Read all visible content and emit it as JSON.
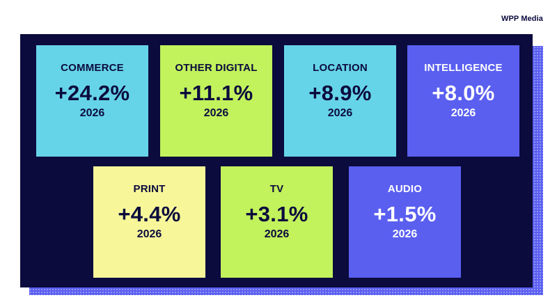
{
  "brand": "WPP Media",
  "colors": {
    "background": "#ffffff",
    "panel": "#0b0b3d",
    "cyan": "#66d4e8",
    "lime": "#c2f25c",
    "blue": "#5a5ff0",
    "yellow": "#f7f79a"
  },
  "tiles": [
    {
      "label": "COMMERCE",
      "value": "+24.2%",
      "year": "2026",
      "color": "#66d4e8"
    },
    {
      "label": "OTHER DIGITAL",
      "value": "+11.1%",
      "year": "2026",
      "color": "#c2f25c"
    },
    {
      "label": "LOCATION",
      "value": "+8.9%",
      "year": "2026",
      "color": "#66d4e8"
    },
    {
      "label": "INTELLIGENCE",
      "value": "+8.0%",
      "year": "2026",
      "color": "#5a5ff0"
    },
    {
      "label": "PRINT",
      "value": "+4.4%",
      "year": "2026",
      "color": "#f7f79a"
    },
    {
      "label": "TV",
      "value": "+3.1%",
      "year": "2026",
      "color": "#c2f25c"
    },
    {
      "label": "AUDIO",
      "value": "+1.5%",
      "year": "2026",
      "color": "#5a5ff0"
    }
  ]
}
